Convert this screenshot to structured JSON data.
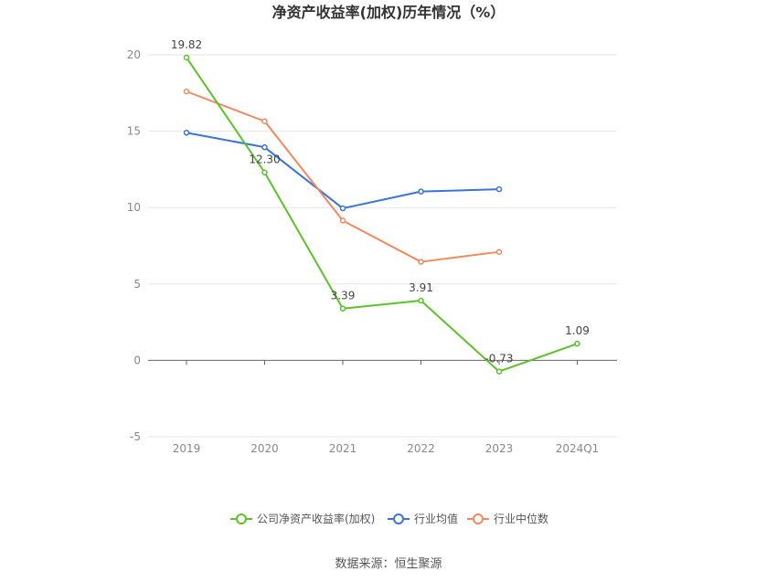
{
  "chart_data": {
    "type": "line",
    "title": "净资产收益率(加权)历年情况（%）",
    "categories": [
      "2019",
      "2020",
      "2021",
      "2022",
      "2023",
      "2024Q1"
    ],
    "ylim": [
      -5,
      20
    ],
    "yticks": [
      "20",
      "15",
      "10",
      "5",
      "0",
      "-5"
    ],
    "grid": true,
    "legend_position": "bottom",
    "series": [
      {
        "name": "公司净资产收益率(加权)",
        "color": "#5cc12a",
        "values": [
          19.82,
          12.3,
          3.39,
          3.91,
          -0.73,
          1.09
        ],
        "labels": [
          "19.82",
          "12.30",
          "3.39",
          "3.91",
          "-0.73",
          "1.09"
        ]
      },
      {
        "name": "行业均值",
        "color": "#3a74d6",
        "values": [
          14.9,
          13.95,
          9.95,
          11.05,
          11.2,
          null
        ]
      },
      {
        "name": "行业中位数",
        "color": "#f08a5d",
        "values": [
          17.6,
          15.65,
          9.15,
          6.45,
          7.1,
          null
        ]
      }
    ]
  },
  "source_text": "数据来源：恒生聚源"
}
